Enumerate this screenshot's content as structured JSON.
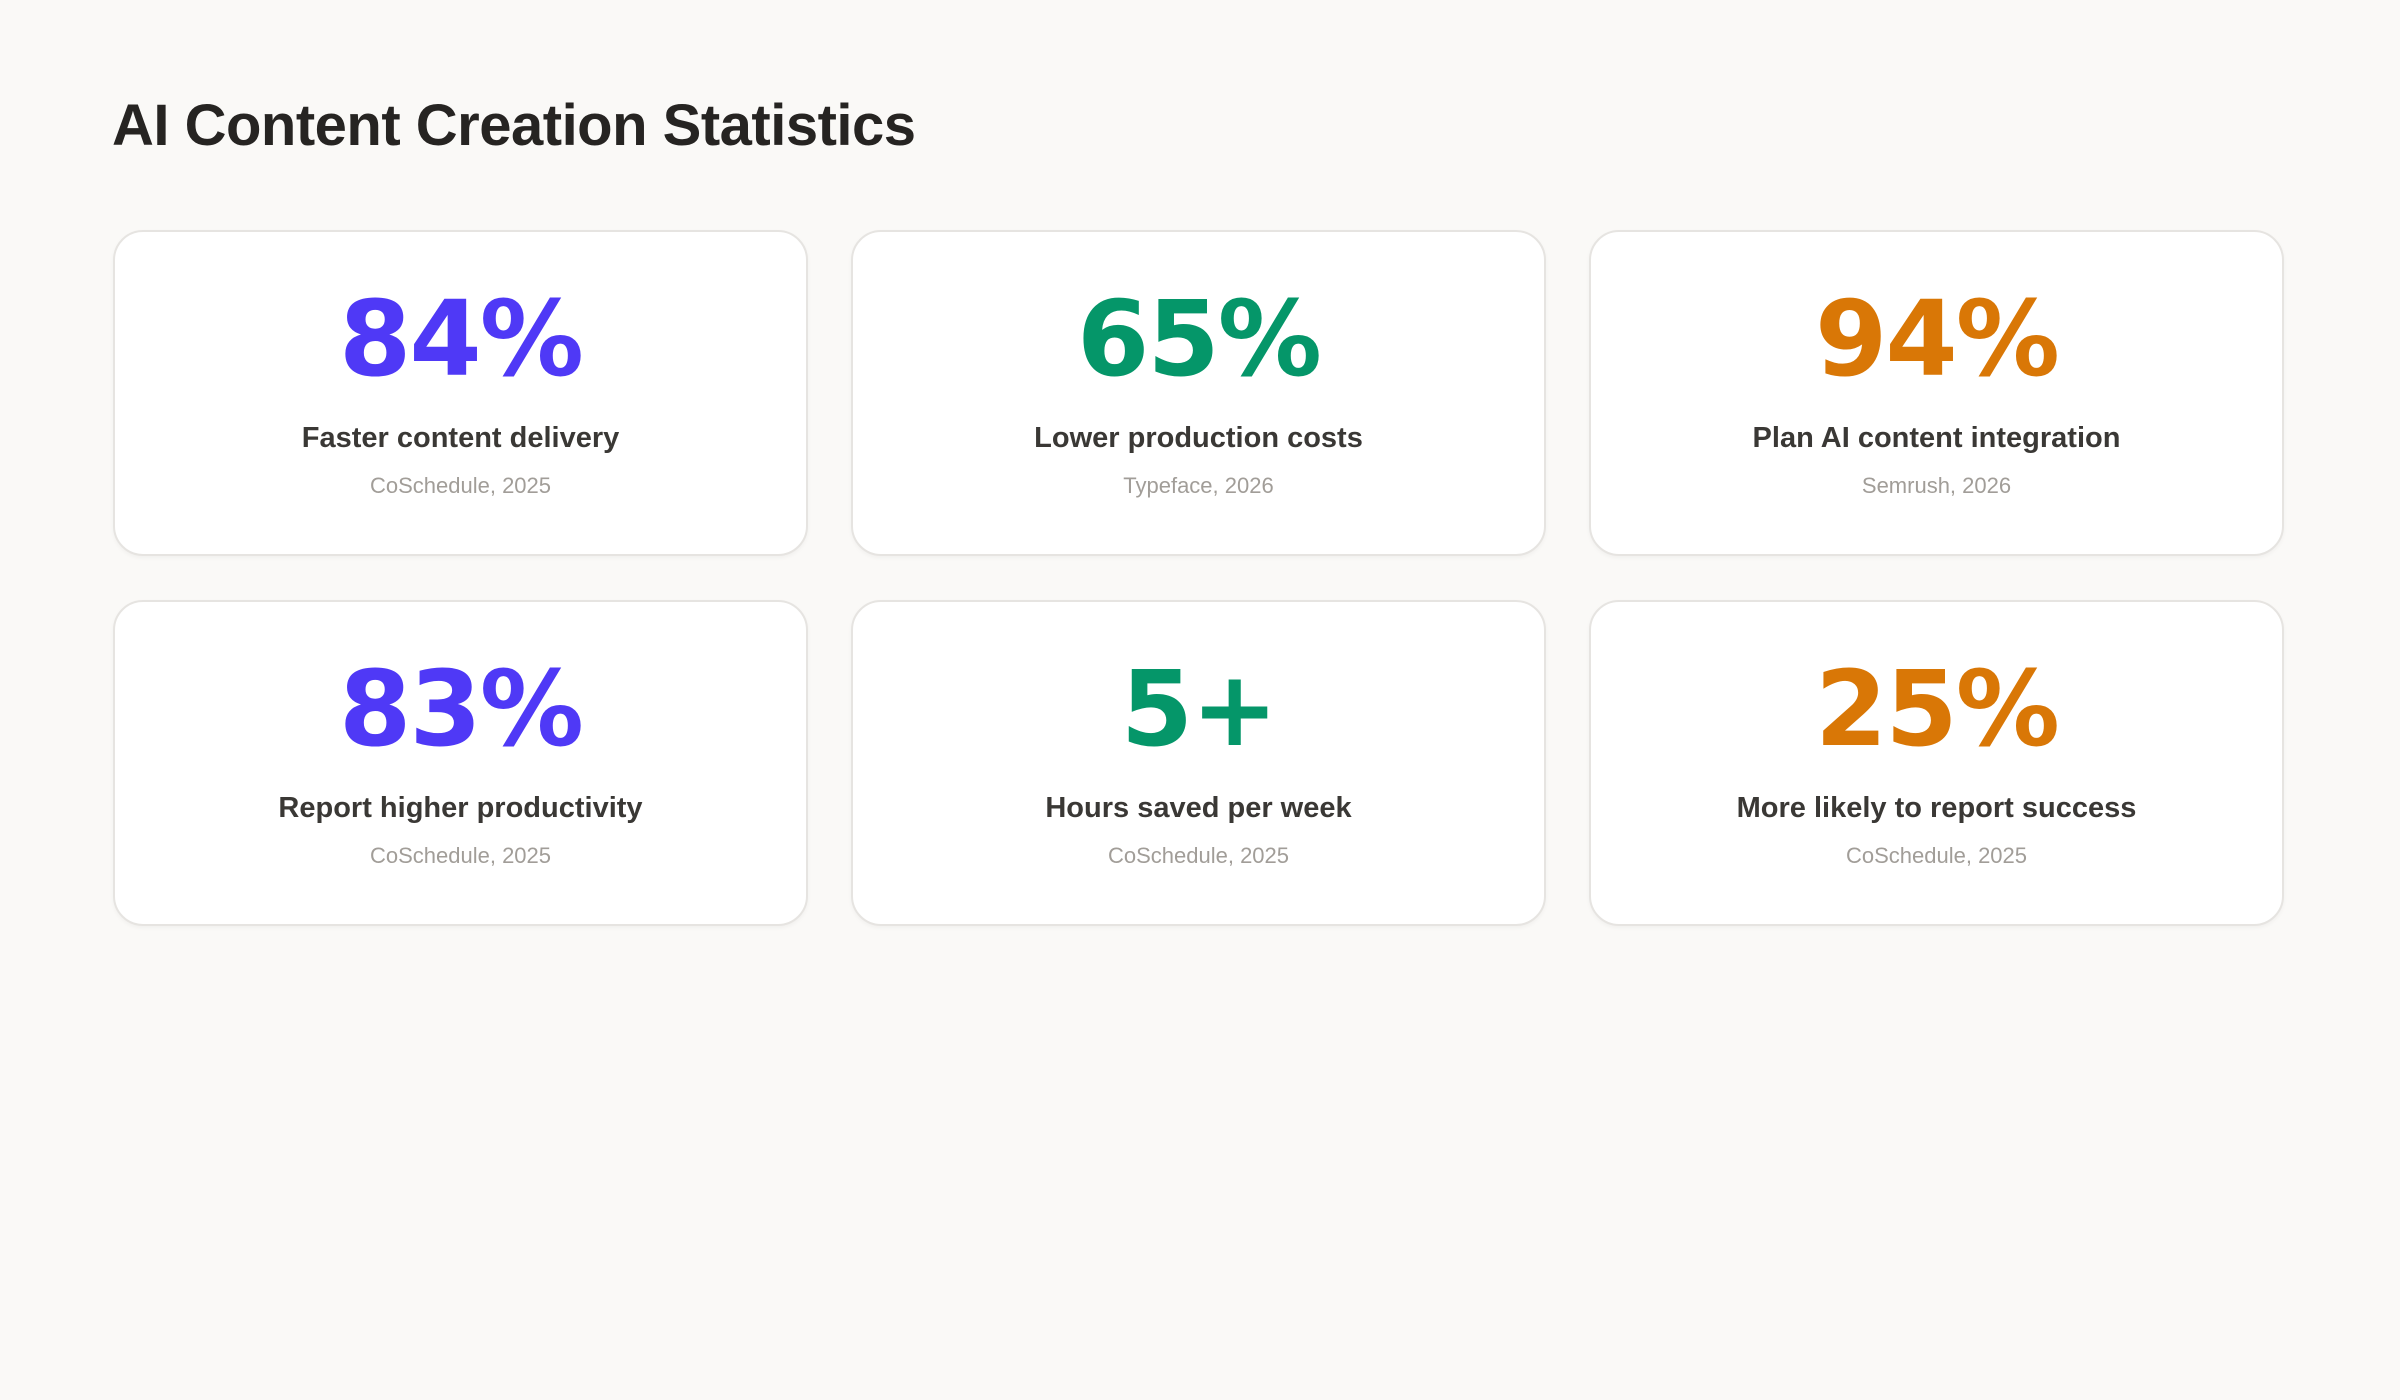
{
  "title": "AI Content Creation Statistics",
  "colors": {
    "purple": "#4f39f6",
    "green": "#059669",
    "orange": "#d97706"
  },
  "stats": [
    {
      "value": "84%",
      "label": "Faster content delivery",
      "source": "CoSchedule, 2025",
      "color": "#4f39f6"
    },
    {
      "value": "65%",
      "label": "Lower production costs",
      "source": "Typeface, 2026",
      "color": "#059669"
    },
    {
      "value": "94%",
      "label": "Plan AI content integration",
      "source": "Semrush, 2026",
      "color": "#d97706"
    },
    {
      "value": "83%",
      "label": "Report higher productivity",
      "source": "CoSchedule, 2025",
      "color": "#4f39f6"
    },
    {
      "value": "5+",
      "label": "Hours saved per week",
      "source": "CoSchedule, 2025",
      "color": "#059669"
    },
    {
      "value": "25%",
      "label": "More likely to report success",
      "source": "CoSchedule, 2025",
      "color": "#d97706"
    }
  ]
}
